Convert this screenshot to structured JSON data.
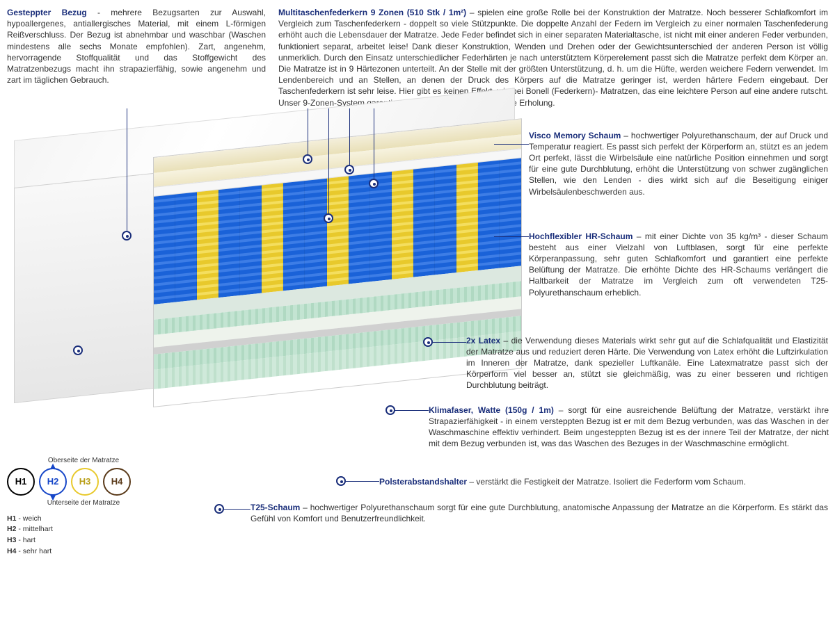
{
  "top": {
    "left": {
      "title": "Gesteppter Bezug",
      "sep": " - ",
      "text": "mehrere Bezugsarten zur Auswahl, hypoallergenes, antiallergisches Material, mit einem L-förmigen Reißverschluss. Der Bezug ist abnehmbar und waschbar (Waschen mindestens alle sechs Monate empfohlen). Zart, angenehm, hervorragende Stoffqualität und das Stoffgewicht des Matratzenbezugs macht ihn strapazierfähig, sowie angenehm und zart im täglichen Gebrauch."
    },
    "right": {
      "title": "Multitaschenfederkern 9 Zonen (510 Stk / 1m²)",
      "sep": " – ",
      "text": "spielen eine große Rolle bei der Konstruktion der Matratze. Noch besserer Schlafkomfort im Vergleich zum Taschenfederkern - doppelt so viele Stützpunkte. Die doppelte Anzahl der Federn im Vergleich zu einer normalen Taschenfederung erhöht auch die Lebensdauer der Matratze. Jede Feder befindet sich in einer separaten Materialtasche, ist nicht mit einer anderen Feder verbunden, funktioniert separat, arbeitet leise! Dank dieser Konstruktion, Wenden und Drehen oder der Gewichtsunterschied der anderen Person ist völlig unmerklich. Durch den Einsatz unterschiedlicher Federhärten je nach unterstütztem Körperelement passt sich die Matratze perfekt dem Körper an. Die Matratze ist in 9 Härtezonen unterteilt. An der Stelle mit der größten Unterstützung, d. h. um die Hüfte, werden weichere Federn verwendet. Im Lendenbereich und an Stellen, an denen der Druck des Körpers auf die Matratze geringer ist, werden härtere Federn eingebaut. Der Taschenfederkern ist sehr leise. Hier gibt es keinen Effekt, wie bei Bonell (Federkern)- Matratzen, das eine leichtere Person auf eine andere rutscht. Unser 9-Zonen-System garantiert eine gesunde und komfortable Erholung."
    }
  },
  "callouts": {
    "visco": {
      "title": "Visco Memory Schaum",
      "sep": " – ",
      "text": "hochwertiger Polyurethanschaum, der auf Druck und Temperatur reagiert. Es passt sich perfekt der Körperform an, stützt es an jedem Ort perfekt, lässt die Wirbelsäule eine natürliche Position einnehmen und sorgt für eine gute Durchblutung, erhöht die Unterstützung von schwer zugänglichen Stellen, wie den Lenden - dies wirkt sich auf die Beseitigung einiger Wirbelsäulenbeschwerden aus."
    },
    "hr": {
      "title": "Hochflexibler HR-Schaum",
      "sep": " – ",
      "text": "mit einer Dichte von 35 kg/m³ - dieser Schaum besteht aus einer Vielzahl von Luftblasen, sorgt für eine perfekte Körperanpassung, sehr guten Schlafkomfort und garantiert eine perfekte Belüftung der Matratze. Die erhöhte Dichte des HR-Schaums verlängert die Haltbarkeit der Matratze im Vergleich zum oft verwendeten T25-Polyurethanschaum erheblich."
    },
    "latex": {
      "title": "2x Latex",
      "sep": " – ",
      "text": "die Verwendung dieses Materials wirkt sehr gut auf die Schlafqualität und Elastizität der Matratze aus und reduziert deren Härte. Die Verwendung von Latex erhöht die Luftzirkulation im Inneren der Matratze, dank spezieller Luftkanäle. Eine Latexmatratze passt sich der Körperform viel besser an, stützt sie gleichmäßig, was zu einer besseren und richtigen Durchblutung beiträgt."
    },
    "klima": {
      "title": "Klimafaser, Watte (150g / 1m)",
      "sep": " – ",
      "text": "sorgt für eine ausreichende Belüftung der Matratze, verstärkt ihre Strapazierfähigkeit - in einem versteppten Bezug ist er mit dem Bezug verbunden, was das Waschen in der Waschmaschine effektiv verhindert. Beim ungesteppten Bezug ist es der innere Teil der Matratze, der nicht mit dem Bezug verbunden ist, was das Waschen des Bezuges in der Waschmaschine ermöglicht."
    },
    "polster": {
      "title": "Polsterabstandshalter",
      "sep": " – ",
      "text": "verstärkt die Festigkeit der Matratze. Isoliert die Federform vom Schaum."
    },
    "t25": {
      "title": "T25-Schaum",
      "sep": " – ",
      "text": "hochwertiger Polyurethanschaum sorgt für eine gute Durchblutung, anatomische Anpassung der Matratze an die Körperform. Es stärkt das Gefühl von Komfort und Benutzerfreundlichkeit."
    }
  },
  "legend": {
    "top_label": "Oberseite der Matratze",
    "bottom_label": "Unterseite der Matratze",
    "items": [
      {
        "code": "H1",
        "desc": "weich"
      },
      {
        "code": "H2",
        "desc": "mittelhart"
      },
      {
        "code": "H3",
        "desc": "hart"
      },
      {
        "code": "H4",
        "desc": "sehr hart"
      }
    ]
  },
  "colors": {
    "title_color": "#1a2e7a",
    "spring_blue": "#1a62d8",
    "spring_yellow": "#e8c92c",
    "latex_green": "#c3e4d2",
    "h1_border": "#000000",
    "h2_border": "#1646c8",
    "h3_border": "#e8c92c",
    "h4_border": "#5a3a1a"
  },
  "spring_pattern": [
    "b",
    "b",
    "y",
    "b",
    "b",
    "y",
    "b",
    "b",
    "y",
    "b",
    "b",
    "y",
    "b",
    "b",
    "y",
    "b",
    "b"
  ]
}
